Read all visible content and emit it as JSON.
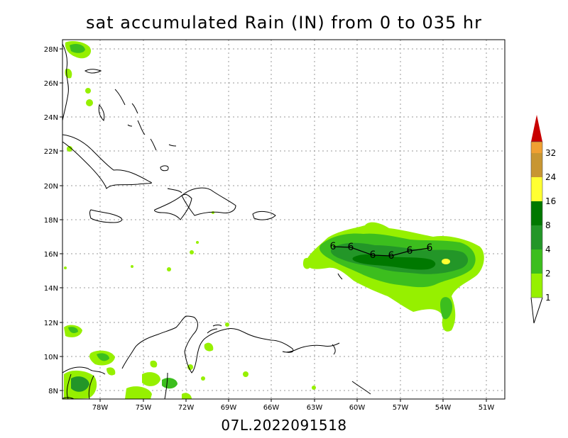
{
  "title": "sat accumulated Rain (IN) from 0 to 035 hr",
  "footer": "07L.2022091518",
  "lat_labels": [
    "28N",
    "26N",
    "24N",
    "22N",
    "20N",
    "18N",
    "16N",
    "14N",
    "12N",
    "10N",
    "8N"
  ],
  "lon_labels": [
    "78W",
    "75W",
    "72W",
    "69W",
    "66W",
    "63W",
    "60W",
    "57W",
    "54W",
    "51W"
  ],
  "colorbar": {
    "labels": [
      "1",
      "2",
      "4",
      "8",
      "16",
      "24",
      "32"
    ],
    "colors": [
      "#96f000",
      "#3cbe1e",
      "#239628",
      "#007800",
      "#ffff32",
      "#c89632",
      "#f0a032",
      "#c80000"
    ]
  },
  "storm_symbol": "6",
  "rain_colors": {
    "light": "#96f000",
    "med": "#3cbe1e",
    "dark": "#239628",
    "darker": "#007800",
    "peak": "#ffff32"
  }
}
